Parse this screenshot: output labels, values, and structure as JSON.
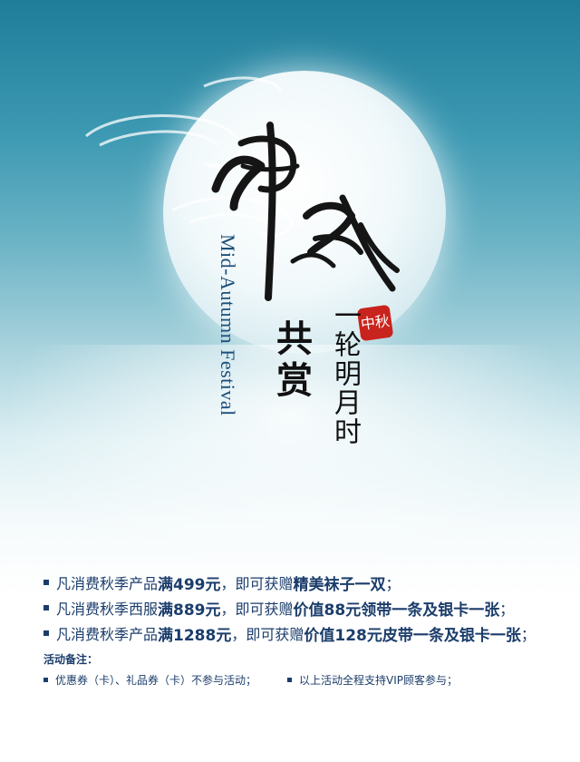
{
  "title_calligraphy": "中秋",
  "seal_text": "中秋",
  "english_title": "Mid-Autumn Festival",
  "subtitle_main": "共赏",
  "subtitle_side": "一轮明月时",
  "promotions": [
    {
      "pre": "凡消费秋季产品",
      "mid": "满499元",
      "sep": "，即可获赠",
      "gift": "精美袜子一双",
      "end": "；"
    },
    {
      "pre": "凡消费秋季西服",
      "mid": "满889元",
      "sep": "，即可获赠",
      "gift": "价值88元领带一条及银卡一张",
      "end": "；"
    },
    {
      "pre": "凡消费秋季产品",
      "mid": "满1288元",
      "sep": "，即可获赠",
      "gift": "价值128元皮带一条及银卡一张",
      "end": "；"
    }
  ],
  "notes_title": "活动备注：",
  "notes": [
    "优惠券（卡）、礼品券（卡）不参与活动；",
    "以上活动全程支持VIP顾客参与；"
  ],
  "colors": {
    "text_blue": "#1b3d6b",
    "seal_red": "#c8241d"
  }
}
